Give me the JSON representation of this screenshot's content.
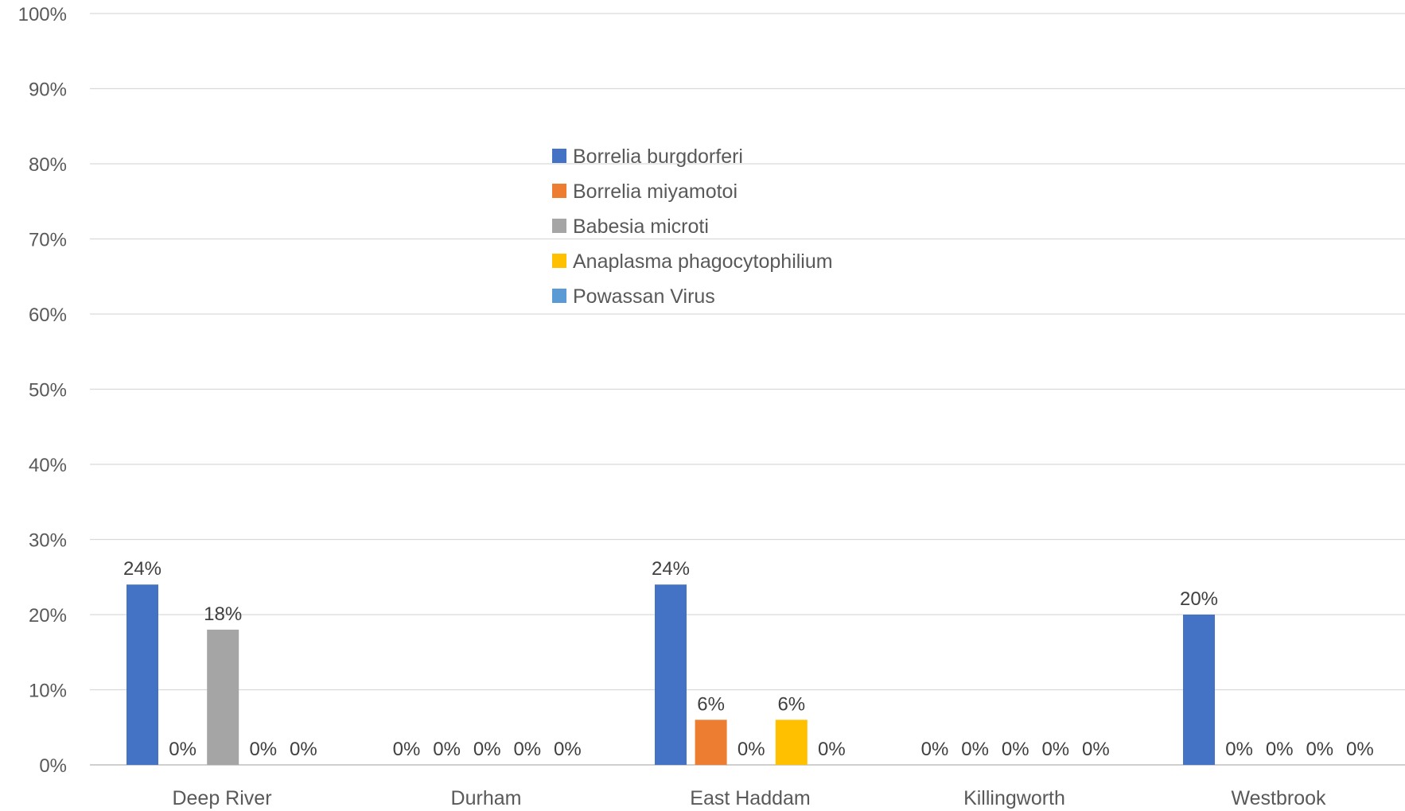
{
  "chart_data": {
    "type": "bar",
    "title": "",
    "xlabel": "",
    "ylabel": "",
    "ylim": [
      0,
      100
    ],
    "yticks": [
      0,
      10,
      20,
      30,
      40,
      50,
      60,
      70,
      80,
      90,
      100
    ],
    "ytick_suffix": "%",
    "grid": true,
    "legend_position": "top-center",
    "categories": [
      "Deep River",
      "Durham",
      "East Haddam",
      "Killingworth",
      "Westbrook"
    ],
    "series": [
      {
        "name": "Borrelia burgdorferi",
        "color": "#4472C4",
        "values": [
          24,
          0,
          24,
          0,
          20
        ],
        "labels": [
          "24%",
          "0%",
          "24%",
          "0%",
          "20%"
        ]
      },
      {
        "name": "Borrelia miyamotoi",
        "color": "#ED7D31",
        "values": [
          0,
          0,
          6,
          0,
          0
        ],
        "labels": [
          "0%",
          "0%",
          "6%",
          "0%",
          "0%"
        ]
      },
      {
        "name": "Babesia microti",
        "color": "#A5A5A5",
        "values": [
          18,
          0,
          0,
          0,
          0
        ],
        "labels": [
          "18%",
          "0%",
          "0%",
          "0%",
          "0%"
        ]
      },
      {
        "name": "Anaplasma phagocytophilium",
        "color": "#FFC000",
        "values": [
          0,
          0,
          6,
          0,
          0
        ],
        "labels": [
          "0%",
          "0%",
          "6%",
          "0%",
          "0%"
        ]
      },
      {
        "name": "Powassan Virus",
        "color": "#5B9BD5",
        "values": [
          0,
          0,
          0,
          0,
          0
        ],
        "labels": [
          "0%",
          "0%",
          "0%",
          "0%",
          "0%"
        ]
      }
    ]
  }
}
